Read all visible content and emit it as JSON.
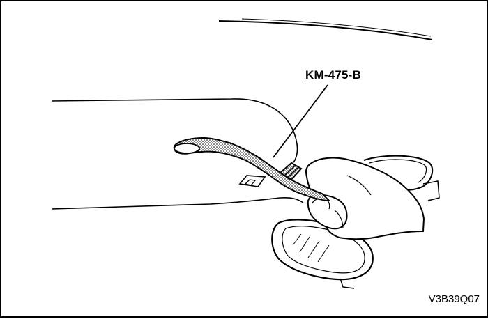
{
  "diagram": {
    "tool_label": "KM-475-B",
    "figure_code": "V3B39Q07",
    "line_color": "#000000",
    "background_color": "#ffffff"
  }
}
